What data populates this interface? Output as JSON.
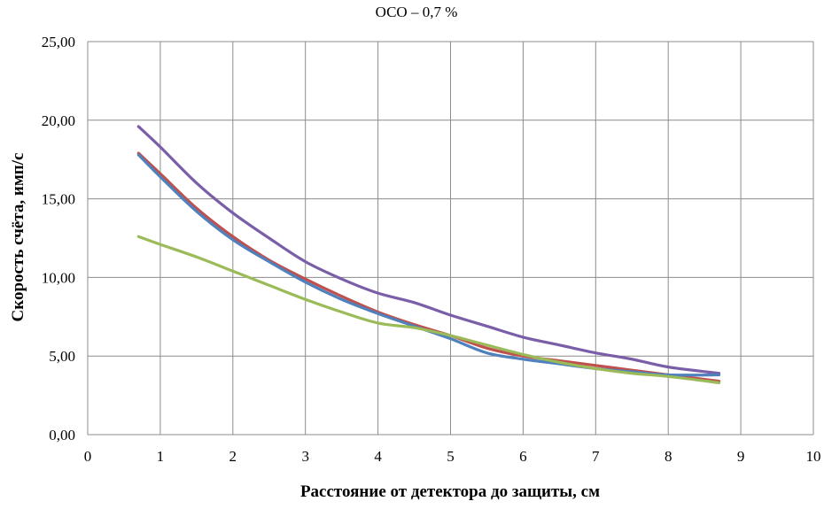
{
  "chart_data": {
    "type": "line",
    "title": "ОСО – 0,7 %",
    "xlabel": "Расстояние от детектора до защиты, см",
    "ylabel": "Скорость счёта, имп/с",
    "xlim": [
      0,
      10
    ],
    "ylim": [
      0,
      25
    ],
    "x_ticks": [
      0,
      1,
      2,
      3,
      4,
      5,
      6,
      7,
      8,
      9,
      10
    ],
    "x_tick_labels": [
      "0",
      "1",
      "2",
      "3",
      "4",
      "5",
      "6",
      "7",
      "8",
      "9",
      "10"
    ],
    "y_ticks": [
      0,
      5,
      10,
      15,
      20,
      25
    ],
    "y_tick_labels": [
      "0,00",
      "5,00",
      "10,00",
      "15,00",
      "20,00",
      "25,00"
    ],
    "grid": true,
    "legend": "none",
    "series": [
      {
        "color": "#7a5ea8",
        "x": [
          0.7,
          1.0,
          1.5,
          2.0,
          2.5,
          3.0,
          3.5,
          4.0,
          4.5,
          5.0,
          5.5,
          6.0,
          6.5,
          7.0,
          7.5,
          8.0,
          8.7
        ],
        "y": [
          19.6,
          18.3,
          16.0,
          14.1,
          12.5,
          11.0,
          9.9,
          9.0,
          8.4,
          7.6,
          6.9,
          6.2,
          5.7,
          5.2,
          4.8,
          4.3,
          3.9
        ]
      },
      {
        "color": "#c0504d",
        "x": [
          0.7,
          1.0,
          1.5,
          2.0,
          2.5,
          3.0,
          3.5,
          4.0,
          4.5,
          5.0,
          5.5,
          6.0,
          6.5,
          7.0,
          7.5,
          8.0,
          8.7
        ],
        "y": [
          17.9,
          16.6,
          14.4,
          12.6,
          11.1,
          9.9,
          8.8,
          7.8,
          7.0,
          6.3,
          5.5,
          5.0,
          4.7,
          4.4,
          4.1,
          3.8,
          3.4
        ]
      },
      {
        "color": "#4f81bd",
        "x": [
          0.7,
          1.0,
          1.5,
          2.0,
          2.5,
          3.0,
          3.5,
          4.0,
          4.5,
          5.0,
          5.5,
          6.0,
          6.5,
          7.0,
          7.5,
          8.0,
          8.7
        ],
        "y": [
          17.8,
          16.4,
          14.2,
          12.4,
          11.0,
          9.7,
          8.6,
          7.7,
          6.9,
          6.1,
          5.2,
          4.8,
          4.5,
          4.2,
          4.0,
          3.8,
          3.8
        ]
      },
      {
        "color": "#9bbb59",
        "x": [
          0.7,
          1.0,
          1.5,
          2.0,
          2.5,
          3.0,
          3.5,
          4.0,
          4.5,
          5.0,
          5.5,
          6.0,
          6.5,
          7.0,
          7.5,
          8.0,
          8.7
        ],
        "y": [
          12.6,
          12.1,
          11.3,
          10.4,
          9.5,
          8.6,
          7.8,
          7.1,
          6.8,
          6.3,
          5.7,
          5.1,
          4.6,
          4.2,
          3.9,
          3.7,
          3.3
        ]
      }
    ]
  }
}
